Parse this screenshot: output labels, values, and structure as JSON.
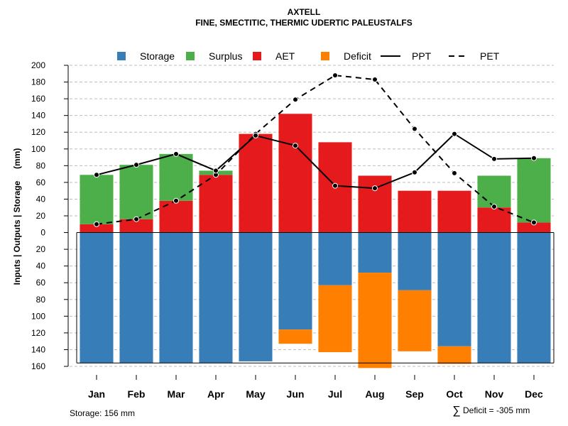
{
  "chart_data": {
    "type": "bar",
    "title": "AXTELL",
    "subtitle": "FINE, SMECTITIC, THERMIC UDERTIC PALEUSTALFS",
    "ylabel": "Inputs | Outputs | Storage     (mm)",
    "ylim": [
      -160,
      200
    ],
    "yticks": [
      200,
      180,
      160,
      140,
      120,
      100,
      80,
      60,
      40,
      20,
      0,
      -20,
      -40,
      -60,
      -80,
      -100,
      -120,
      -140,
      -160
    ],
    "ytick_labels": [
      "200",
      "180",
      "160",
      "140",
      "120",
      "100",
      "80",
      "60",
      "40",
      "20",
      "0",
      "20",
      "40",
      "60",
      "80",
      "100",
      "120",
      "140",
      "160"
    ],
    "categories": [
      "Jan",
      "Feb",
      "Mar",
      "Apr",
      "May",
      "Jun",
      "Jul",
      "Aug",
      "Sep",
      "Oct",
      "Nov",
      "Dec"
    ],
    "legend": [
      {
        "label": "Storage",
        "kind": "box",
        "color": "#377EB8"
      },
      {
        "label": "Surplus",
        "kind": "box",
        "color": "#4DAF4A"
      },
      {
        "label": "AET",
        "kind": "box",
        "color": "#E41A1C"
      },
      {
        "label": "Deficit",
        "kind": "box",
        "color": "#FF7F00"
      },
      {
        "label": "PPT",
        "kind": "solid",
        "color": "#000000"
      },
      {
        "label": "PET",
        "kind": "dashed",
        "color": "#000000"
      }
    ],
    "series": [
      {
        "name": "AET",
        "values": [
          10,
          16,
          38,
          69,
          118,
          142,
          108,
          68,
          50,
          50,
          30,
          12
        ]
      },
      {
        "name": "Surplus",
        "values": [
          59,
          65,
          56,
          5,
          0,
          0,
          0,
          0,
          0,
          0,
          38,
          77
        ]
      },
      {
        "name": "Storage",
        "values": [
          156,
          156,
          156,
          156,
          154,
          116,
          63,
          48,
          69,
          136,
          156,
          156
        ]
      },
      {
        "name": "Deficit",
        "values": [
          0,
          0,
          0,
          0,
          0,
          17,
          80,
          114,
          73,
          21,
          0,
          0
        ]
      },
      {
        "name": "PPT",
        "values": [
          69,
          81,
          94,
          74,
          116,
          104,
          56,
          53,
          72,
          118,
          88,
          89
        ]
      },
      {
        "name": "PET",
        "values": [
          10,
          16,
          38,
          69,
          118,
          159,
          188,
          183,
          124,
          71,
          31,
          12
        ]
      }
    ],
    "storage_capacity": 156,
    "grid": true,
    "legend_position": "top"
  },
  "footer": {
    "storage_note": "Storage: 156 mm",
    "deficit_symbol": "∑",
    "deficit_note": "Deficit = -305 mm"
  }
}
